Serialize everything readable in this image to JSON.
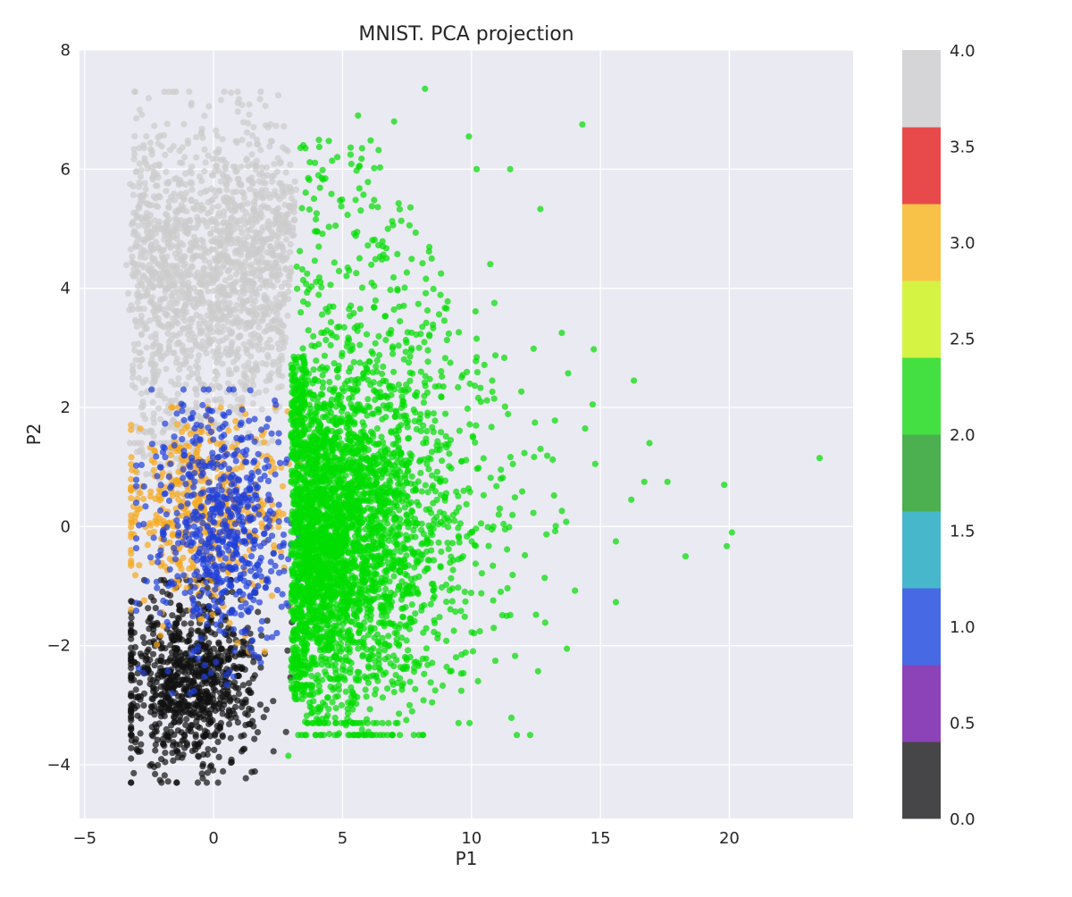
{
  "chart_data": {
    "type": "scatter",
    "title": "MNIST. PCA projection",
    "xlabel": "P1",
    "ylabel": "P2",
    "xlim": [
      -5.2,
      24.8
    ],
    "ylim": [
      -4.9,
      8.0
    ],
    "xticks": [
      -5,
      0,
      5,
      10,
      15,
      20
    ],
    "xtick_labels": [
      "−5",
      "0",
      "5",
      "10",
      "15",
      "20"
    ],
    "yticks": [
      -4,
      -2,
      0,
      2,
      4,
      6,
      8
    ],
    "ytick_labels": [
      "−4",
      "−2",
      "0",
      "2",
      "4",
      "6",
      "8"
    ],
    "grid": true,
    "background": "#eaeaf2",
    "point_alpha": 0.7,
    "colorbar": {
      "range": [
        0.0,
        4.0
      ],
      "ticks": [
        0.0,
        0.5,
        1.0,
        1.5,
        2.0,
        2.5,
        3.0,
        3.5,
        4.0
      ],
      "tick_labels": [
        "0.0",
        "0.5",
        "1.0",
        "1.5",
        "2.0",
        "2.5",
        "3.0",
        "3.5",
        "4.0"
      ],
      "segments": [
        {
          "from": 0.0,
          "to": 0.4,
          "color": "#464648"
        },
        {
          "from": 0.4,
          "to": 0.8,
          "color": "#8c43b8"
        },
        {
          "from": 0.8,
          "to": 1.2,
          "color": "#476ae4"
        },
        {
          "from": 1.2,
          "to": 1.6,
          "color": "#47b7cc"
        },
        {
          "from": 1.6,
          "to": 2.0,
          "color": "#4caf50"
        },
        {
          "from": 2.0,
          "to": 2.4,
          "color": "#44e042"
        },
        {
          "from": 2.4,
          "to": 2.8,
          "color": "#d4f342"
        },
        {
          "from": 2.8,
          "to": 3.2,
          "color": "#f8c249"
        },
        {
          "from": 3.2,
          "to": 3.6,
          "color": "#e84a4b"
        },
        {
          "from": 3.6,
          "to": 4.0,
          "color": "#d5d5d7"
        }
      ]
    },
    "series": [
      {
        "name": "class 4 (gray)",
        "color": "#cccccc",
        "cluster": {
          "x_range": [
            -3.3,
            3.5
          ],
          "y_range": [
            1.4,
            7.3
          ],
          "y_mean": 4.3
        }
      },
      {
        "name": "class 1 (blue)",
        "color": "#1f3fd8",
        "cluster": {
          "x_range": [
            -3.0,
            3.3
          ],
          "y_range": [
            -2.8,
            2.3
          ],
          "y_mean": 0.0
        }
      },
      {
        "name": "class 3 (orange)",
        "color": "#f7a81b",
        "cluster": {
          "x_range": [
            -3.2,
            3.3
          ],
          "y_range": [
            -2.1,
            2.0
          ],
          "y_mean": 0.3
        }
      },
      {
        "name": "class 0 (black)",
        "color": "#111111",
        "cluster": {
          "x_range": [
            -3.2,
            3.2
          ],
          "y_range": [
            -4.3,
            -0.9
          ],
          "y_mean": -2.6
        }
      },
      {
        "name": "class 2 (green)",
        "color": "#00dd00",
        "cluster": {
          "x_range": [
            2.7,
            15.0
          ],
          "y_range": [
            -3.9,
            7.4
          ],
          "y_mean": 0.0
        }
      }
    ],
    "outliers": [
      {
        "x": 23.5,
        "y": 1.15
      },
      {
        "x": 19.8,
        "y": 0.7
      },
      {
        "x": 20.1,
        "y": -0.1
      },
      {
        "x": 19.9,
        "y": -0.33
      },
      {
        "x": 18.3,
        "y": -0.5
      },
      {
        "x": 17.6,
        "y": 0.75
      },
      {
        "x": 16.9,
        "y": 1.4
      },
      {
        "x": 16.3,
        "y": 2.45
      },
      {
        "x": 16.2,
        "y": 0.45
      },
      {
        "x": 14.7,
        "y": 2.05
      },
      {
        "x": 14.3,
        "y": 6.75
      },
      {
        "x": 15.6,
        "y": -1.27
      },
      {
        "x": 15.6,
        "y": -0.25
      },
      {
        "x": 13.7,
        "y": -2.05
      },
      {
        "x": 8.2,
        "y": 7.35
      },
      {
        "x": 9.9,
        "y": 6.55
      },
      {
        "x": 5.6,
        "y": 6.9
      },
      {
        "x": 7.0,
        "y": 6.8
      },
      {
        "x": 11.5,
        "y": 6.0
      },
      {
        "x": 10.2,
        "y": 6.0
      },
      {
        "x": 2.9,
        "y": -3.85
      },
      {
        "x": 7.6,
        "y": -3.0
      },
      {
        "x": 14.8,
        "y": 1.05
      },
      {
        "x": 16.7,
        "y": 0.75
      }
    ]
  }
}
